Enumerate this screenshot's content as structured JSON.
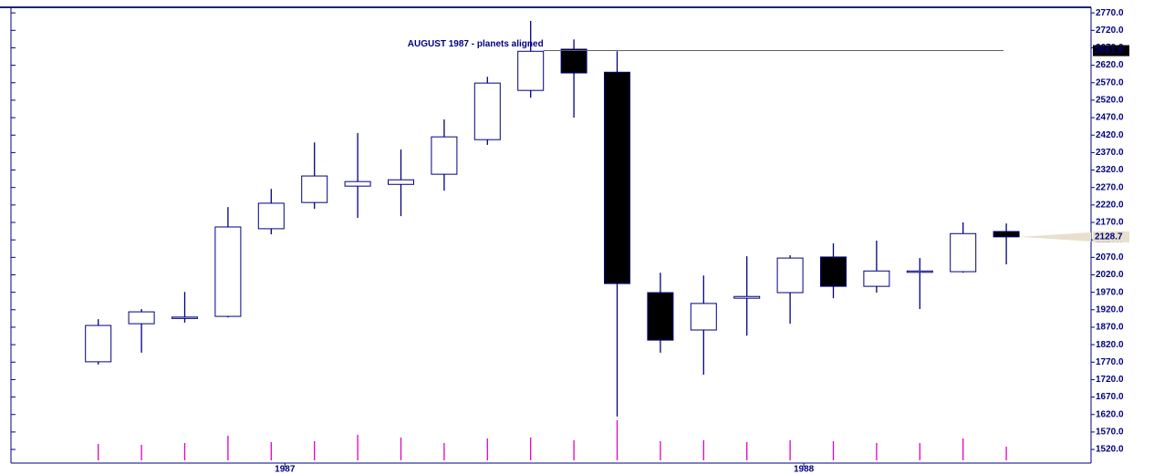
{
  "chart_data": {
    "type": "candlestick",
    "categories": [
      null,
      null,
      null,
      null,
      "1987",
      null,
      null,
      null,
      null,
      null,
      null,
      null,
      null,
      null,
      null,
      null,
      "1988",
      null,
      null,
      null,
      null,
      null
    ],
    "open": [
      1771,
      1880,
      1897,
      1901,
      2152,
      2227,
      2274,
      2279,
      2308,
      2407,
      2548,
      2666,
      2600,
      1969,
      1862,
      1953,
      1969,
      2071,
      1987,
      2031,
      2029,
      2144
    ],
    "high": [
      1893,
      1922,
      1971,
      2214,
      2266,
      2399,
      2426,
      2379,
      2465,
      2587,
      2747,
      2694,
      2660,
      2026,
      2018,
      2073,
      2076,
      2110,
      2118,
      2068,
      2170,
      2167
    ],
    "low": [
      1763,
      1797,
      1883,
      1898,
      2136,
      2209,
      2183,
      2188,
      2261,
      2392,
      2527,
      2470,
      1614,
      1797,
      1734,
      1846,
      1880,
      1953,
      1969,
      1922,
      2026,
      2050
    ],
    "close": [
      1875,
      1914,
      1899,
      2157,
      2225,
      2303,
      2287,
      2292,
      2415,
      2569,
      2660,
      2598,
      1995,
      1833,
      1938,
      1958,
      2068,
      1987,
      2031,
      2031,
      2138,
      2128.7
    ],
    "volume": [
      18,
      17,
      19,
      27,
      20,
      21,
      28,
      25,
      19,
      24,
      25,
      22,
      44,
      21,
      22,
      20,
      22,
      21,
      19,
      19,
      24,
      15
    ],
    "volume_lim": [
      0,
      100
    ],
    "up_color": "#ffffff",
    "down_color": "#000000",
    "outline_color": "#000080",
    "volume_color": "#e000c0",
    "ylim": [
      1481,
      2786
    ],
    "yticks": [
      {
        "value": 2770,
        "label": "2770.0"
      },
      {
        "value": 2720,
        "label": "2720.0"
      },
      {
        "value": 2670,
        "label": "2670.0"
      },
      {
        "value": 2620,
        "label": "2620.0"
      },
      {
        "value": 2570,
        "label": "2570.0"
      },
      {
        "value": 2520,
        "label": "2520.0"
      },
      {
        "value": 2470,
        "label": "2470.0"
      },
      {
        "value": 2420,
        "label": "2420.0"
      },
      {
        "value": 2370,
        "label": "2370.0"
      },
      {
        "value": 2320,
        "label": "2320.0"
      },
      {
        "value": 2270,
        "label": "2270.0"
      },
      {
        "value": 2220,
        "label": "2220.0"
      },
      {
        "value": 2170,
        "label": "2170.0"
      },
      {
        "value": 2120,
        "label": "2120.0"
      },
      {
        "value": 2070,
        "label": "2070.0"
      },
      {
        "value": 2020,
        "label": "2020.0"
      },
      {
        "value": 1970,
        "label": "1970.0"
      },
      {
        "value": 1920,
        "label": "1920.0"
      },
      {
        "value": 1870,
        "label": "1870.0"
      },
      {
        "value": 1820,
        "label": "1820.0"
      },
      {
        "value": 1770,
        "label": "1770.0"
      },
      {
        "value": 1720,
        "label": "1720.0"
      },
      {
        "value": 1670,
        "label": "1670.0"
      },
      {
        "value": 1620,
        "label": "1620.0"
      },
      {
        "value": 1570,
        "label": "1570.0"
      },
      {
        "value": 1520,
        "label": "1520.0"
      }
    ],
    "annotation": {
      "text": "AUGUST 1987 - planets aligned",
      "value": 2661.9
    }
  }
}
